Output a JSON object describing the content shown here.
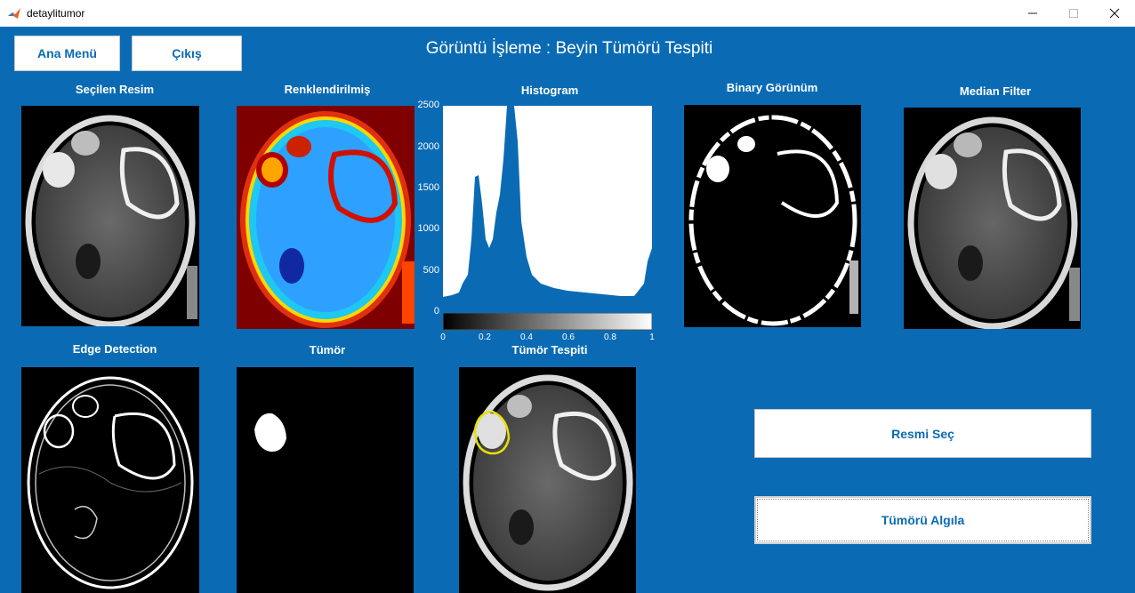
{
  "window": {
    "title": "detaylitumor",
    "icon": "matlab-icon"
  },
  "header": {
    "title": "Görüntü İşleme : Beyin Tümörü Tespiti"
  },
  "buttons": {
    "menu": "Ana Menü",
    "exit": "Çıkış",
    "select_image": "Resmi Seç",
    "detect": "Tümörü Algıla"
  },
  "panels": {
    "selected": "Seçilen Resim",
    "colored": "Renklendirilmiş",
    "histogram": "Histogram",
    "binary": "Binary Görünüm",
    "median": "Median Filter",
    "edge": "Edge Detection",
    "tumor": "Tümör",
    "tumor_detect": "Tümör Tespiti"
  },
  "histogram": {
    "yticks": [
      "2500",
      "2000",
      "1500",
      "1000",
      "500",
      "0"
    ],
    "xticks": [
      "0",
      "0.2",
      "0.4",
      "0.6",
      "0.8",
      "1"
    ]
  },
  "colors": {
    "background": "#0a6bb4",
    "button_text": "#0a6bb4",
    "contour": "#e8e000"
  }
}
